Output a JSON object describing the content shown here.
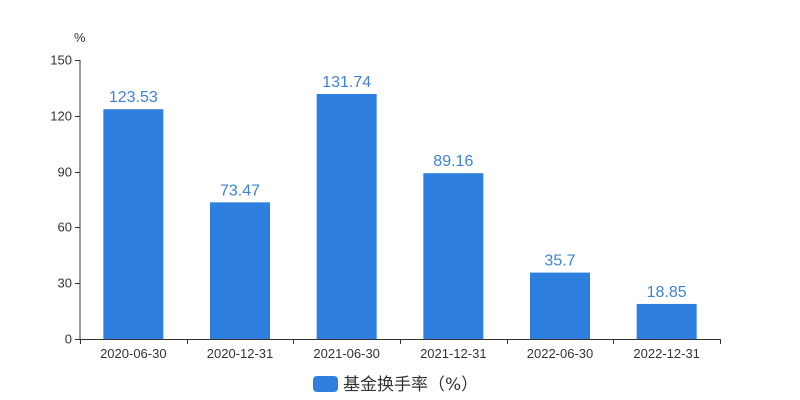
{
  "colors": {
    "bar": "#2f7fdf",
    "label": "#3d82d6",
    "axis": "#333333",
    "text": "#333333"
  },
  "chart_data": {
    "type": "bar",
    "unit": "%",
    "categories": [
      "2020-06-30",
      "2020-12-31",
      "2021-06-30",
      "2021-12-31",
      "2022-06-30",
      "2022-12-31"
    ],
    "series": [
      {
        "name": "基金换手率（%）",
        "values": [
          123.53,
          73.47,
          131.74,
          89.16,
          35.7,
          18.85
        ],
        "labels": [
          "123.53",
          "73.47",
          "131.74",
          "89.16",
          "35.7",
          "18.85"
        ]
      }
    ],
    "yticks": [
      "0",
      "30",
      "60",
      "90",
      "120",
      "150"
    ],
    "ylim": [
      0,
      150
    ],
    "grid": false,
    "legend_position": "bottom-center"
  }
}
